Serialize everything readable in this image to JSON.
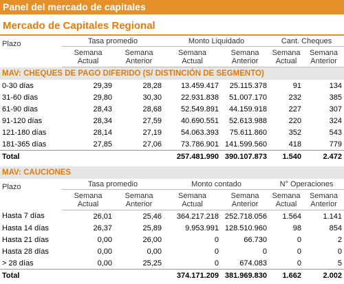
{
  "header": {
    "title": "Panel del mercado de capitales"
  },
  "subtitle": "Mercado de Capitales Regional",
  "sections": [
    {
      "title": "MAV: CHEQUES DE PAGO DIFERIDO (S/ DISTINCIÓN DE SEGMENTO)",
      "row_label": "Plazo",
      "column_groups": [
        "Tasa promedio",
        "Monto Liquidado",
        "Cant. Cheques"
      ],
      "subheaders": [
        [
          "Semana",
          "Actual"
        ],
        [
          "Semana",
          "Anterior"
        ],
        [
          "Semana",
          "Actual"
        ],
        [
          "Semana",
          "Anterior"
        ],
        [
          "Semana",
          "Actual"
        ],
        [
          "Semana",
          "Anterior"
        ]
      ],
      "rows": [
        {
          "label": "0-30 días",
          "values": [
            "29,39",
            "28,28",
            "13.459.417",
            "25.115.378",
            "91",
            "134"
          ]
        },
        {
          "label": "31-60 días",
          "values": [
            "29,80",
            "30,30",
            "22.931.838",
            "51.007.170",
            "232",
            "385"
          ]
        },
        {
          "label": "61-90 días",
          "values": [
            "28,43",
            "28,68",
            "52.549.891",
            "44.159.918",
            "227",
            "307"
          ]
        },
        {
          "label": "91-120 días",
          "values": [
            "28,34",
            "27,59",
            "40.690.551",
            "52.613.988",
            "220",
            "324"
          ]
        },
        {
          "label": "121-180 días",
          "values": [
            "28,14",
            "27,19",
            "54.063.393",
            "75.611.860",
            "352",
            "543"
          ]
        },
        {
          "label": "181-365 días",
          "values": [
            "27,85",
            "27,06",
            "73.786.901",
            "141.599.560",
            "418",
            "779"
          ]
        }
      ],
      "total": {
        "label": "Total",
        "values": [
          "257.481.990",
          "390.107.873",
          "1.540",
          "2.472"
        ]
      }
    },
    {
      "title": "MAV: CAUCIONES",
      "row_label": "Plazo",
      "column_groups": [
        "Tasa promedio",
        "Monto contado",
        "N° Operaciones"
      ],
      "subheaders": [
        [
          "Semana",
          "Actual"
        ],
        [
          "Semana",
          "Anterior"
        ],
        [
          "Semana",
          "Actual"
        ],
        [
          "Semana",
          "Anterior"
        ],
        [
          "Semana",
          "Actual"
        ],
        [
          "Semana",
          "Anterior"
        ]
      ],
      "rows": [
        {
          "label": "Hasta 7 días",
          "values": [
            "26,01",
            "25,46",
            "364.217.218",
            "252.718.056",
            "1.564",
            "1.141"
          ]
        },
        {
          "label": "Hasta 14 días",
          "values": [
            "26,37",
            "25,89",
            "9.953.991",
            "128.510.960",
            "98",
            "854"
          ]
        },
        {
          "label": "Hasta 21 días",
          "values": [
            "0,00",
            "26,00",
            "0",
            "66.730",
            "0",
            "2"
          ]
        },
        {
          "label": "Hasta 28 días",
          "values": [
            "0,00",
            "0,00",
            "0",
            "0",
            "0",
            "0"
          ]
        },
        {
          "label": "> 28 días",
          "values": [
            "0,00",
            "25,25",
            "0",
            "674.083",
            "0",
            "5"
          ]
        }
      ],
      "total": {
        "label": "Total",
        "values": [
          "374.171.209",
          "381.969.830",
          "1.662",
          "2.002"
        ]
      }
    }
  ]
}
